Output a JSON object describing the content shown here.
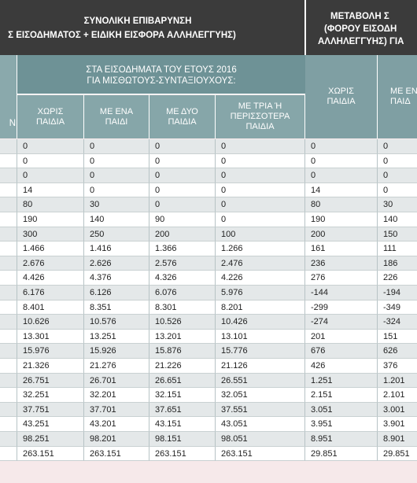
{
  "header": {
    "left_title": [
      "ΣΥΝΟΛΙΚΗ ΕΠΙΒΑΡΥΝΣΗ",
      "Σ ΕΙΣΟΔΗΜΑΤΟΣ + ΕΙΔΙΚΗ ΕΙΣΦΟΡΑ ΑΛΛΗΛΕΓΓΥΗΣ)"
    ],
    "right_title": [
      "ΜΕΤΑΒΟΛΗ Σ",
      "(ΦΟΡΟΥ ΕΙΣΟΔΗ",
      "ΑΛΛΗΛΕΓΓΥΗΣ) ΓΙΑ"
    ],
    "subheader": [
      "ΣΤΑ ΕΙΣΟΔΗΜΑΤΑ ΤΟΥ ΕΤΟΥΣ 2016",
      "ΓΙΑ ΜΙΣΘΩΤΟΥΣ-ΣΥΝΤΑΞΙΟΥΧΟΥΣ:"
    ],
    "stub_label": "Ν",
    "columns": [
      [
        "ΧΩΡΙΣ",
        "ΠΑΙΔΙΑ"
      ],
      [
        "ΜΕ ΕΝΑ",
        "ΠΑΙΔΙ"
      ],
      [
        "ΜΕ ΔΥΟ",
        "ΠΑΙΔΙΑ"
      ],
      [
        "ΜΕ ΤΡΙΑ Ή",
        "ΠΕΡΙΣΣΟΤΕΡΑ",
        "ΠΑΙΔΙΑ"
      ],
      [
        "ΧΩΡΙΣ",
        "ΠΑΙΔΙΑ"
      ],
      [
        "ΜΕ ΕΝ",
        "ΠΑΙΔ"
      ]
    ]
  },
  "table": {
    "rows": [
      [
        "0",
        "0",
        "0",
        "0",
        "0",
        "0"
      ],
      [
        "0",
        "0",
        "0",
        "0",
        "0",
        "0"
      ],
      [
        "0",
        "0",
        "0",
        "0",
        "0",
        "0"
      ],
      [
        "14",
        "0",
        "0",
        "0",
        "14",
        "0"
      ],
      [
        "80",
        "30",
        "0",
        "0",
        "80",
        "30"
      ],
      [
        "190",
        "140",
        "90",
        "0",
        "190",
        "140"
      ],
      [
        "300",
        "250",
        "200",
        "100",
        "200",
        "150"
      ],
      [
        "1.466",
        "1.416",
        "1.366",
        "1.266",
        "161",
        "111"
      ],
      [
        "2.676",
        "2.626",
        "2.576",
        "2.476",
        "236",
        "186"
      ],
      [
        "4.426",
        "4.376",
        "4.326",
        "4.226",
        "276",
        "226"
      ],
      [
        "6.176",
        "6.126",
        "6.076",
        "5.976",
        "-144",
        "-194"
      ],
      [
        "8.401",
        "8.351",
        "8.301",
        "8.201",
        "-299",
        "-349"
      ],
      [
        "10.626",
        "10.576",
        "10.526",
        "10.426",
        "-274",
        "-324"
      ],
      [
        "13.301",
        "13.251",
        "13.201",
        "13.101",
        "201",
        "151"
      ],
      [
        "15.976",
        "15.926",
        "15.876",
        "15.776",
        "676",
        "626"
      ],
      [
        "21.326",
        "21.276",
        "21.226",
        "21.126",
        "426",
        "376"
      ],
      [
        "26.751",
        "26.701",
        "26.651",
        "26.551",
        "1.251",
        "1.201"
      ],
      [
        "32.251",
        "32.201",
        "32.151",
        "32.051",
        "2.151",
        "2.101"
      ],
      [
        "37.751",
        "37.701",
        "37.651",
        "37.551",
        "3.051",
        "3.001"
      ],
      [
        "43.251",
        "43.201",
        "43.151",
        "43.051",
        "3.951",
        "3.901"
      ],
      [
        "98.251",
        "98.201",
        "98.151",
        "98.051",
        "8.951",
        "8.901"
      ],
      [
        "263.151",
        "263.151",
        "263.151",
        "263.151",
        "29.851",
        "29.851"
      ]
    ]
  }
}
